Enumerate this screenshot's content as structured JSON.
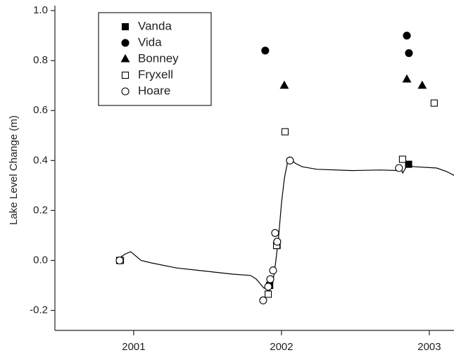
{
  "chart_data": {
    "type": "scatter",
    "ylabel": "Lake Level Change (m)",
    "xlim": [
      2000.467,
      2003.167
    ],
    "ylim": [
      -0.28,
      1.02
    ],
    "xticks": [
      2001,
      2002,
      2003
    ],
    "yticks": [
      {
        "value": -0.2,
        "label": "-0.2"
      },
      {
        "value": 0,
        "label": "0.0"
      },
      0.2,
      0.4,
      0.6,
      0.8,
      {
        "value": 1,
        "label": "1.0"
      }
    ],
    "legend": "upper left",
    "trace": {
      "color": "#000000",
      "x": [
        2000.88,
        2000.94,
        2000.98,
        2001.05,
        2001.12,
        2001.29,
        2001.52,
        2001.67,
        2001.79,
        2001.83,
        2001.88,
        2001.92,
        2001.94,
        2001.96,
        2001.98,
        2002.0,
        2002.02,
        2002.04,
        2002.06,
        2002.09,
        2002.14,
        2002.24,
        2002.48,
        2002.67,
        2002.79,
        2002.8,
        2002.82,
        2002.85,
        2002.9,
        2003.05,
        2003.12,
        2003.17
      ],
      "y": [
        0,
        0.025,
        0.035,
        0,
        -0.01,
        -0.03,
        -0.045,
        -0.055,
        -0.06,
        -0.075,
        -0.11,
        -0.12,
        -0.095,
        -0.01,
        0.09,
        0.23,
        0.33,
        0.39,
        0.41,
        0.39,
        0.375,
        0.365,
        0.36,
        0.362,
        0.36,
        0.38,
        0.35,
        0.38,
        0.375,
        0.37,
        0.355,
        0.34
      ]
    },
    "series": [
      {
        "name": "Vanda",
        "marker": "square",
        "filled": true,
        "color": "#000000",
        "x": [
          2000.905,
          2001.92,
          2001.97,
          2002.86
        ],
        "y": [
          0,
          -0.1,
          0.06,
          0.385
        ]
      },
      {
        "name": "Vida",
        "marker": "circle",
        "filled": true,
        "color": "#000000",
        "x": [
          2001.89,
          2002.848,
          2002.862
        ],
        "y": [
          0.84,
          0.9,
          0.83
        ]
      },
      {
        "name": "Bonney",
        "marker": "triangle",
        "filled": true,
        "color": "#000000",
        "x": [
          2002.019,
          2002.848,
          2002.952
        ],
        "y": [
          0.7,
          0.725,
          0.7
        ]
      },
      {
        "name": "Fryxell",
        "marker": "square",
        "filled": false,
        "color": "#000000",
        "x": [
          2000.91,
          2001.91,
          2001.967,
          2002.024,
          2002.819,
          2003.033
        ],
        "y": [
          0,
          -0.135,
          0.06,
          0.515,
          0.405,
          0.63
        ]
      },
      {
        "name": "Hoare",
        "marker": "circle",
        "filled": false,
        "color": "#000000",
        "x": [
          2000.905,
          2001.876,
          2001.91,
          2001.924,
          2001.943,
          2001.957,
          2001.971,
          2002.057,
          2002.795
        ],
        "y": [
          0,
          -0.16,
          -0.105,
          -0.075,
          -0.04,
          0.11,
          0.075,
          0.4,
          0.37
        ]
      }
    ]
  }
}
